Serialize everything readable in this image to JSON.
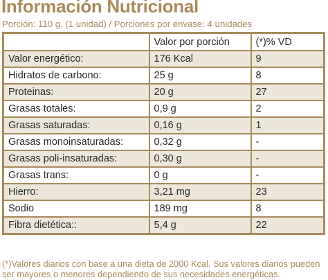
{
  "title": "Información Nutricional",
  "subtitle": "Porción: 110 g. (1 unidad) / Porciones por envase: 4 unidades",
  "table": {
    "headers": [
      "",
      "Valor por porción",
      "(*)% VD"
    ],
    "rows": [
      {
        "name": "Valor energético:",
        "value": "176 Kcal",
        "vd": "9"
      },
      {
        "name": "Hidratos de carbono:",
        "value": "25 g",
        "vd": "8"
      },
      {
        "name": "Proteinas:",
        "value": "20 g",
        "vd": "27"
      },
      {
        "name": "Grasas totales:",
        "value": "0,9 g",
        "vd": "2"
      },
      {
        "name": "Grasas saturadas:",
        "value": "0,16 g",
        "vd": "1"
      },
      {
        "name": "Grasas monoinsaturadas:",
        "value": "0,32 g",
        "vd": "-"
      },
      {
        "name": "Grasas poli-insaturadas:",
        "value": "0,30 g",
        "vd": "-"
      },
      {
        "name": "Grasas trans:",
        "value": "0 g",
        "vd": "-"
      },
      {
        "name": "Hierro:",
        "value": "3,21 mg",
        "vd": "23"
      },
      {
        "name": "Sodio",
        "value": "189 mg",
        "vd": "8"
      },
      {
        "name": "Fibra dietética::",
        "value": "5,4 g",
        "vd": "22"
      }
    ]
  },
  "footnote": {
    "line1": "(*)Valores diarios con base a una dieta de 2000 Kcal. Sus valores diarios pueden",
    "line2": "ser mayores o menores dependiendo de sus necesidades energéticas."
  },
  "colors": {
    "accent": "#a88b5b",
    "row_shade": "#ece6db",
    "text": "#2a2a2a"
  }
}
